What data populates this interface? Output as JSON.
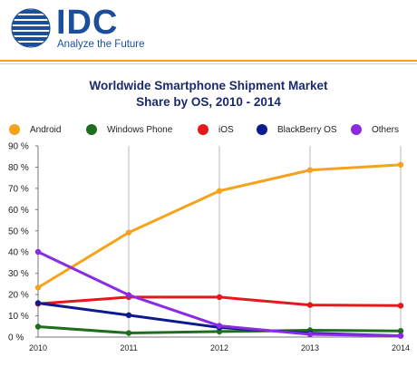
{
  "header": {
    "logo_text": "IDC",
    "tagline": "Analyze the Future"
  },
  "colors": {
    "brand_blue": "#1b4f9c",
    "accent_orange": "#f3a21f"
  },
  "chart_data": {
    "type": "line",
    "title": "Worldwide Smartphone Shipment Market",
    "subtitle": "Share by OS, 2010 - 2014",
    "xlabel": "",
    "ylabel": "",
    "x": [
      2010,
      2011,
      2012,
      2013,
      2014
    ],
    "x_tick_labels": [
      "2010",
      "2011",
      "2012",
      "2013",
      "2014"
    ],
    "ylim": [
      0,
      90
    ],
    "y_ticks": [
      0,
      10,
      20,
      30,
      40,
      50,
      60,
      70,
      80,
      90
    ],
    "y_tick_labels": [
      "0 %",
      "10 %",
      "20 %",
      "30 %",
      "40 %",
      "50 %",
      "60 %",
      "70 %",
      "80 %",
      "90 %"
    ],
    "grid": "vertical",
    "legend_position": "top",
    "series": [
      {
        "name": "Android",
        "color": "#f7a21b",
        "values": [
          23.3,
          49.2,
          68.8,
          78.6,
          81.1
        ]
      },
      {
        "name": "Windows Phone",
        "color": "#1f6e1f",
        "values": [
          4.9,
          1.9,
          2.6,
          3.2,
          2.9
        ]
      },
      {
        "name": "iOS",
        "color": "#e8171e",
        "values": [
          15.7,
          18.8,
          18.8,
          15.1,
          14.8
        ]
      },
      {
        "name": "BlackBerry OS",
        "color": "#0b1a8f",
        "values": [
          16.0,
          10.3,
          4.5,
          1.8,
          0.6
        ]
      },
      {
        "name": "Others",
        "color": "#8b2be2",
        "values": [
          40.1,
          19.8,
          5.3,
          1.3,
          0.6
        ]
      }
    ]
  }
}
